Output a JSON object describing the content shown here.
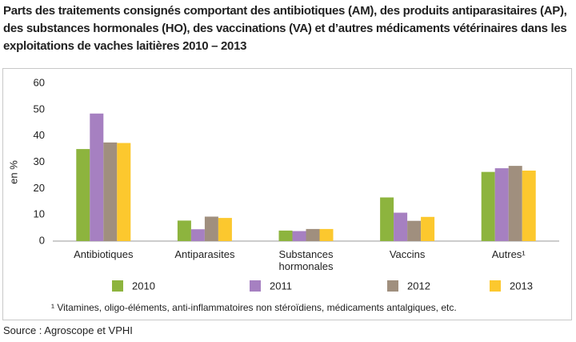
{
  "chart_data": {
    "type": "bar",
    "title": "Parts des traitements consignés comportant des antibiotiques (AM), des produits antiparasitaires (AP), des substances hormonales (HO), des vaccinations (VA) et d’autres médicaments vétérinaires dans les exploitations de vaches laitières 2010 – 2013",
    "y_label": "en %",
    "categories": [
      "Antibiotiques",
      "Antiparasites",
      "Substances hormonales",
      "Vaccins",
      "Autres¹"
    ],
    "series": [
      {
        "name": "2010",
        "color": "#8db43e",
        "values": [
          35,
          7.8,
          4.0,
          16.6,
          26.3
        ]
      },
      {
        "name": "2011",
        "color": "#a680c1",
        "values": [
          48.5,
          4.5,
          3.8,
          10.8,
          27.7
        ]
      },
      {
        "name": "2012",
        "color": "#a08f7e",
        "values": [
          37.5,
          9.3,
          4.6,
          7.7,
          28.6
        ]
      },
      {
        "name": "2013",
        "color": "#fcc82e",
        "values": [
          37.3,
          8.8,
          4.6,
          9.2,
          26.8
        ]
      }
    ],
    "ylim": [
      0,
      60
    ],
    "yticks": [
      0,
      10,
      20,
      30,
      40,
      50,
      60
    ],
    "grid": false,
    "footnote": "¹ Vitamines, oligo-éléments, anti-inflammatoires non stéroïdiens, médicaments antalgiques, etc.",
    "source": "Source : Agroscope et VPHI"
  }
}
